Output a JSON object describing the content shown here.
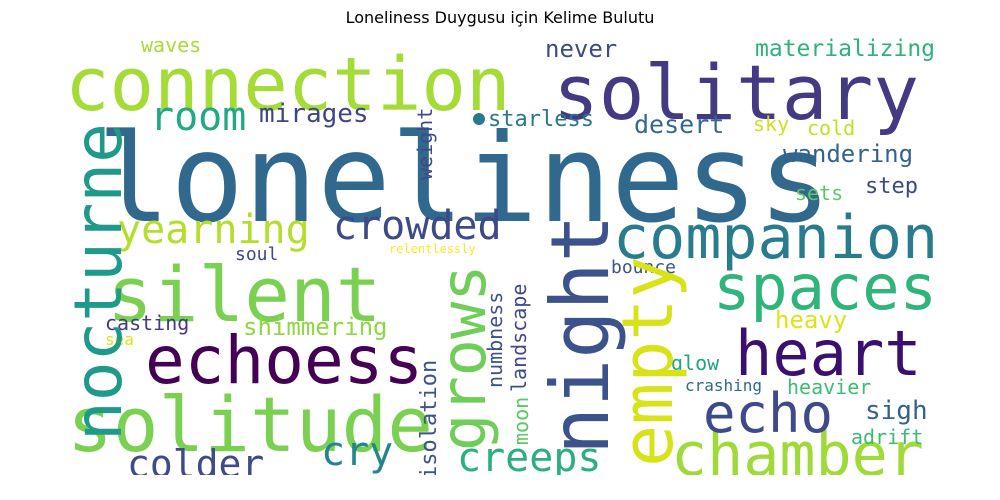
{
  "title": "Loneliness Duygusu için Kelime Bulutu",
  "palette": "viridis",
  "words": {
    "loneliness": "loneliness",
    "connection": "connection",
    "solitary": "solitary",
    "nocturne": "nocturne",
    "silent": "silent",
    "solitude": "solitude",
    "companion": "companion",
    "night": "night",
    "echoess": "echoess",
    "heart": "heart",
    "chamber": "chamber",
    "spaces": "spaces",
    "grows": "grows",
    "empty": "empty",
    "echo": "echo",
    "crowded": "crowded",
    "yearning": "yearning",
    "room": "room",
    "creeps": "creeps",
    "colder": "colder",
    "cry": "cry",
    "mirages": "mirages",
    "weight": "weight",
    "waves": "waves",
    "never": "never",
    "starless": "starless",
    "desert": "desert",
    "materializing": "materializing",
    "sky": "sky",
    "cold": "cold",
    "wandering": "wandering",
    "step": "step",
    "sets": "sets",
    "soul": "soul",
    "relentlessly": "relentlessly",
    "bounce": "bounce",
    "landscape": "landscape",
    "numbness": "numbness",
    "isolation": "isolation",
    "moon": "moon",
    "casting": "casting",
    "shimmering": "shimmering",
    "sea": "sea",
    "heavy": "heavy",
    "glow": "glow",
    "crashing": "crashing",
    "heavier": "heavier",
    "sigh": "sigh",
    "adrift": "adrift"
  }
}
